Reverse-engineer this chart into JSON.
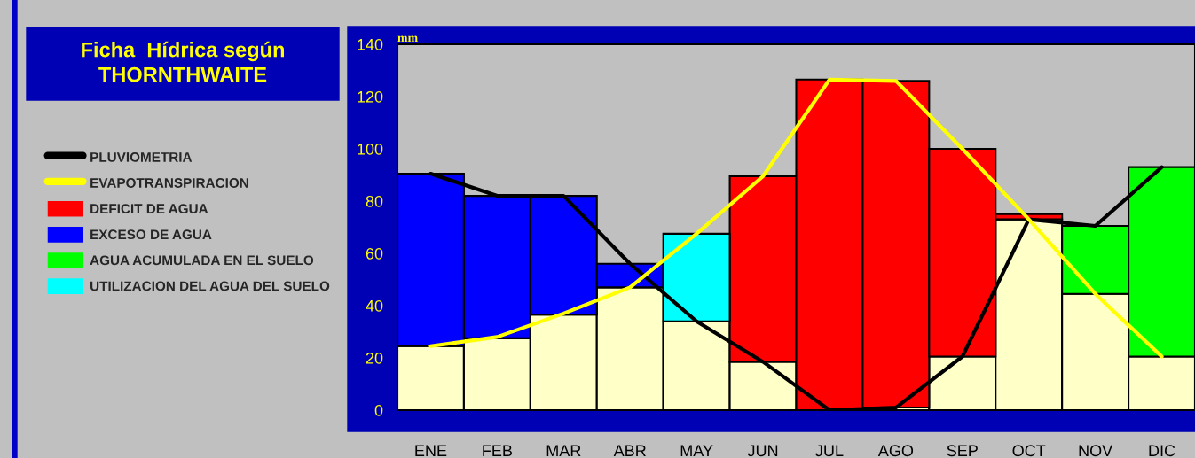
{
  "chart_data": {
    "type": "bar",
    "stacked": true,
    "title": "Ficha  Hídrica según\nTHORNTHWAITE",
    "ylabel": "mm",
    "categories": [
      "ENE",
      "FEB",
      "MAR",
      "ABR",
      "MAY",
      "JUN",
      "JUL",
      "AGO",
      "SEP",
      "OCT",
      "NOV",
      "DIC"
    ],
    "series": [
      {
        "type": "line",
        "name": "PLUVIOMETRIA",
        "color": "#000000",
        "values": [
          90.5,
          82,
          82,
          56,
          34,
          18.5,
          0,
          1,
          20.5,
          73,
          70.5,
          93
        ]
      },
      {
        "type": "line",
        "name": "EVAPOTRANSPIRACION",
        "color": "#ffff00",
        "values": [
          24.5,
          28,
          37,
          47,
          67.5,
          89.5,
          126.5,
          126,
          100,
          73,
          44.5,
          20.5
        ]
      },
      {
        "color": "#ffffc8",
        "values": [
          24.5,
          27.5,
          36.5,
          47,
          34,
          18.5,
          0,
          1,
          20.5,
          73,
          44.5,
          20.5
        ]
      },
      {
        "name": "DEFICIT DE AGUA",
        "color": "#ff0000",
        "values": [
          null,
          null,
          null,
          null,
          null,
          71,
          126.5,
          125,
          79.5,
          2,
          null,
          null
        ]
      },
      {
        "name": "EXCESO DE AGUA",
        "color": "#0000ff",
        "values": [
          66,
          54.5,
          45.5,
          9,
          null,
          null,
          null,
          null,
          null,
          null,
          null,
          null
        ]
      },
      {
        "name": "AGUA ACUMULADA EN EL SUELO",
        "color": "#00ff00",
        "values": [
          null,
          null,
          null,
          null,
          null,
          null,
          null,
          null,
          null,
          null,
          26,
          72.5
        ]
      },
      {
        "name": "UTILIZACION DEL AGUA DEL SUELO",
        "color": "#00ffff",
        "values": [
          null,
          null,
          null,
          null,
          33.5,
          null,
          null,
          null,
          null,
          null,
          null,
          null
        ]
      }
    ],
    "ylim": [
      0,
      140
    ],
    "yticks": [
      0,
      20,
      40,
      60,
      80,
      100,
      120,
      140
    ],
    "legend": "left",
    "marker": "none",
    "line_style": "solid"
  }
}
